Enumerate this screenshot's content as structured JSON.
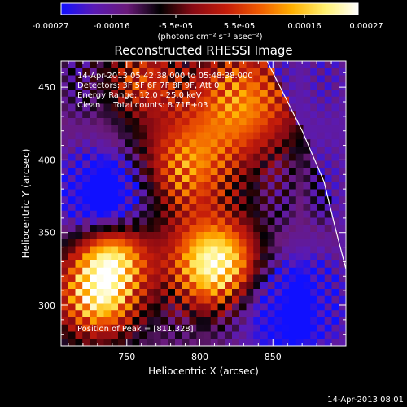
{
  "colorbar": {
    "tick_labels": [
      "-0.00027",
      "-0.00016",
      "-5.5e-05",
      "5.5e-05",
      "0.00016",
      "0.00027"
    ],
    "range": [
      -0.00027,
      0.00027
    ],
    "unit_label": "(photons cm⁻² s⁻¹ asec⁻²)",
    "stops": [
      "#1010ff",
      "#5a1ab4",
      "#6a1a7a",
      "#000000",
      "#8a0a14",
      "#c41c0a",
      "#f05a00",
      "#ffb000",
      "#fff070",
      "#ffffff"
    ]
  },
  "chart_data": {
    "type": "heatmap",
    "title": "Reconstructed RHESSI Image",
    "xlabel": "Heliocentric X (arcsec)",
    "ylabel": "Heliocentric Y (arcsec)",
    "xlim": [
      705,
      900
    ],
    "ylim": [
      272,
      468
    ],
    "xticks": [
      750,
      800,
      850
    ],
    "yticks": [
      300,
      350,
      400,
      450
    ],
    "tick_labels_x": [
      "750",
      "800",
      "850"
    ],
    "tick_labels_y": [
      "300",
      "350",
      "400",
      "450"
    ],
    "annotations": [
      "14-Apr-2013 05:42:38.000 to 05:48:38.000",
      "Detectors: 3F 5F 6F 7F 8F 9F, Att 0",
      "Energy Range: 12.0 - 25.0 keV",
      "Clean     Total counts: 8.71E+03"
    ],
    "peak_label": "Position of Peak = [811,328]",
    "peak": [
      811,
      328
    ],
    "peak_value": 0.00027,
    "limb_curve": [
      [
        846,
        468
      ],
      [
        870,
        420
      ],
      [
        885,
        385
      ],
      [
        893,
        352
      ],
      [
        900,
        325
      ]
    ]
  },
  "footer": {
    "timestamp": "14-Apr-2013 08:01"
  }
}
